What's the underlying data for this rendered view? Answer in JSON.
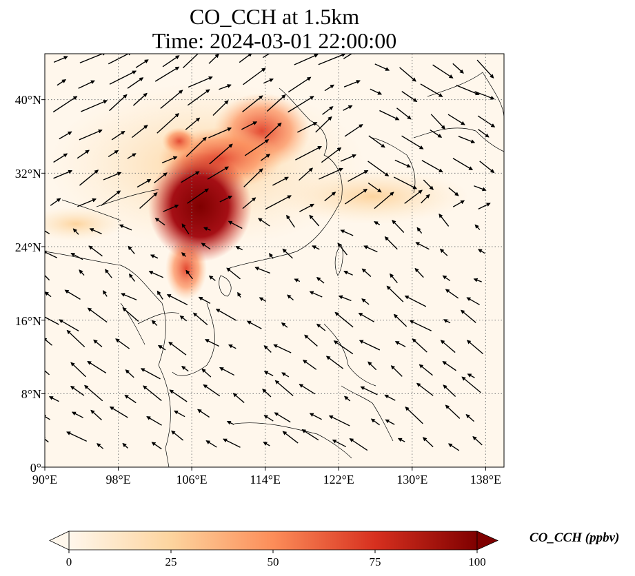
{
  "title": {
    "line1": "CO_CCH at 1.5km",
    "line2": "Time: 2024-03-01 22:00:00"
  },
  "map": {
    "lon_range": [
      90,
      140
    ],
    "lat_range": [
      0,
      45
    ],
    "lon_ticks": [
      90,
      98,
      106,
      114,
      122,
      130,
      138
    ],
    "lat_ticks": [
      0,
      8,
      16,
      24,
      32,
      40
    ],
    "lon_labels": [
      "90°E",
      "98°E",
      "106°E",
      "114°E",
      "122°E",
      "130°E",
      "138°E"
    ],
    "lat_labels": [
      "0°",
      "8°N",
      "16°N",
      "24°N",
      "32°N",
      "40°N"
    ],
    "gridlines": "dotted",
    "field": "CO_CCH",
    "units": "ppbv",
    "wind_vectors": true,
    "high_value_region": "Sichuan Basin / Central China (~104-109°E, 25-33°N)"
  },
  "colorbar": {
    "label": "CO_CCH (ppbv)",
    "range": [
      0,
      100
    ],
    "ticks": [
      "0",
      "25",
      "50",
      "75",
      "100"
    ],
    "colormap": "OrRd",
    "colors": [
      "#fff7ec",
      "#fdd49e",
      "#fc8d59",
      "#d7301f",
      "#7f0000"
    ],
    "extend": "both"
  }
}
